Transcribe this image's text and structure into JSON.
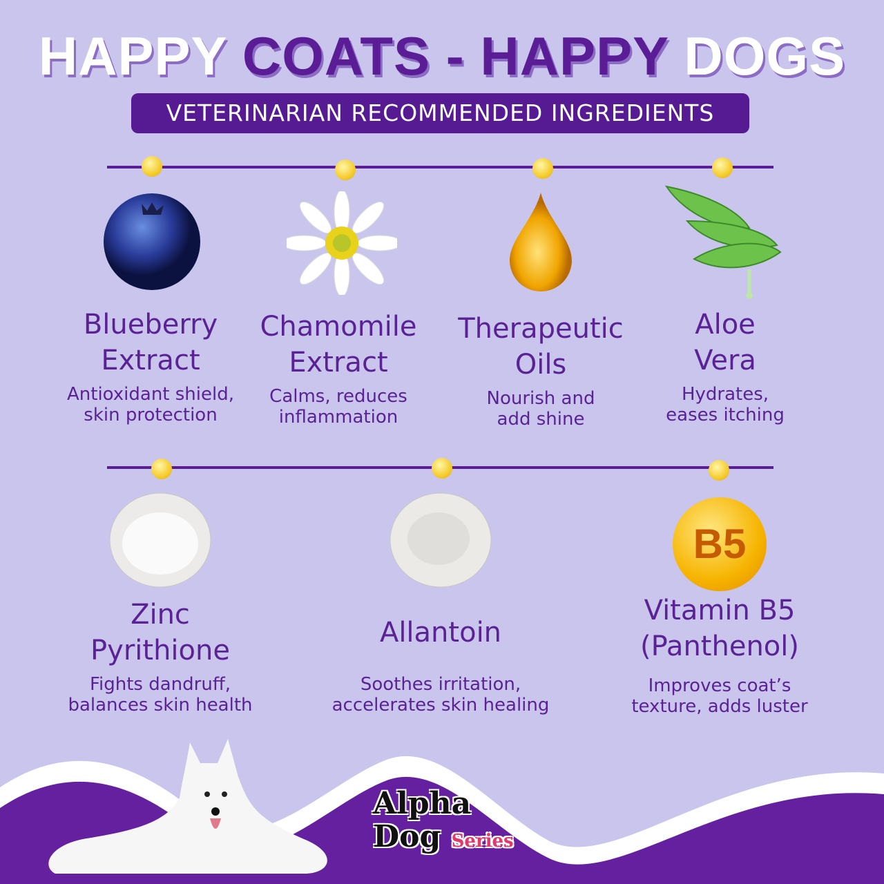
{
  "header": {
    "title_part1": "HAPPY",
    "title_part2": "COATS - HAPPY",
    "title_part3": "DOGS",
    "subtitle": "VETERINARIAN RECOMMENDED INGREDIENTS"
  },
  "row1": [
    {
      "title1": "Blueberry",
      "title2": "Extract",
      "desc1": "Antioxidant shield,",
      "desc2": "skin protection",
      "icon": "blueberry-icon"
    },
    {
      "title1": "Chamomile",
      "title2": "Extract",
      "desc1": "Calms, reduces",
      "desc2": "inflammation",
      "icon": "chamomile-flower-icon"
    },
    {
      "title1": "Therapeutic",
      "title2": "Oils",
      "desc1": "Nourish and",
      "desc2": "add shine",
      "icon": "oil-drop-icon"
    },
    {
      "title1": "Aloe",
      "title2": "Vera",
      "desc1": "Hydrates,",
      "desc2": "eases itching",
      "icon": "aloe-vera-icon"
    }
  ],
  "row2": [
    {
      "title1": "Zinc",
      "title2": "Pyrithione",
      "desc1": "Fights dandruff,",
      "desc2": "balances skin health",
      "icon": "powder-bowl-icon"
    },
    {
      "title1": "Allantoin",
      "title2": "",
      "desc1": "Soothes irritation,",
      "desc2": "accelerates skin healing",
      "icon": "powder-bowl-icon"
    },
    {
      "title1": "Vitamin B5",
      "title2": "(Panthenol)",
      "desc1": "Improves coat’s",
      "desc2": "texture, adds luster",
      "icon": "vitamin-capsule-icon",
      "icon_label": "B5"
    }
  ],
  "brand": {
    "logo_text": "Alpha Dog Series"
  },
  "colors": {
    "background": "#c9c5ec",
    "accent": "#5a1d96",
    "footer": "#6520a0",
    "dot": "#f5cc2e"
  }
}
